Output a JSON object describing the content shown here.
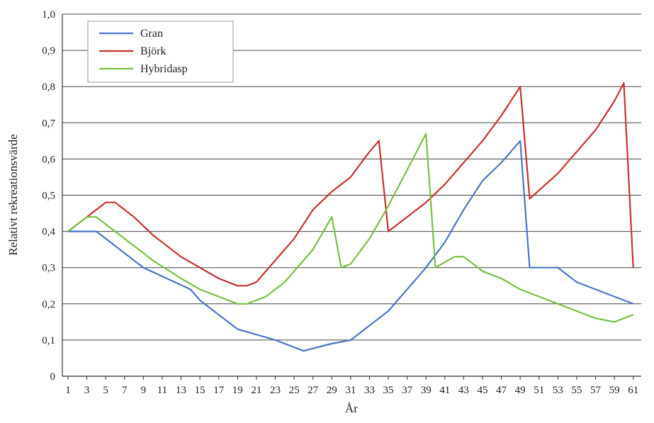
{
  "chart_data": {
    "type": "line",
    "title": "",
    "xlabel": "År",
    "ylabel": "Relativt rekreationsvärde",
    "xlim": [
      1,
      62
    ],
    "ylim": [
      0,
      1.0
    ],
    "x_ticks": [
      "1",
      "3",
      "5",
      "7",
      "9",
      "11",
      "13",
      "15",
      "17",
      "19",
      "21",
      "23",
      "25",
      "27",
      "29",
      "31",
      "33",
      "35",
      "37",
      "39",
      "41",
      "43",
      "45",
      "47",
      "49",
      "51",
      "53",
      "55",
      "57",
      "59",
      "61"
    ],
    "y_ticks": [
      "0",
      "0,1",
      "0,2",
      "0,3",
      "0,4",
      "0,5",
      "0,6",
      "0,7",
      "0,8",
      "0,9",
      "1,0"
    ],
    "grid": "horizontal",
    "legend_position": "top-left",
    "series": [
      {
        "name": "Gran",
        "color": "#4a76c8",
        "x": [
          1,
          4,
          5,
          9,
          14,
          15,
          19,
          23,
          26,
          29,
          31,
          33,
          35,
          37,
          39,
          41,
          43,
          45,
          47,
          49,
          50,
          53,
          55,
          57,
          59,
          61
        ],
        "y": [
          0.4,
          0.4,
          0.38,
          0.3,
          0.24,
          0.21,
          0.13,
          0.1,
          0.07,
          0.09,
          0.1,
          0.14,
          0.18,
          0.24,
          0.3,
          0.37,
          0.46,
          0.54,
          0.59,
          0.65,
          0.3,
          0.3,
          0.26,
          0.24,
          0.22,
          0.2
        ]
      },
      {
        "name": "Björk",
        "color": "#c8332f",
        "x": [
          1,
          3,
          5,
          6,
          8,
          10,
          13,
          15,
          17,
          19,
          20,
          21,
          23,
          25,
          27,
          29,
          31,
          33,
          34,
          35,
          37,
          39,
          41,
          43,
          45,
          47,
          49,
          50,
          53,
          55,
          57,
          59,
          60,
          61
        ],
        "y": [
          0.4,
          0.44,
          0.48,
          0.48,
          0.44,
          0.39,
          0.33,
          0.3,
          0.27,
          0.25,
          0.25,
          0.26,
          0.32,
          0.38,
          0.46,
          0.51,
          0.55,
          0.62,
          0.65,
          0.4,
          0.44,
          0.48,
          0.53,
          0.59,
          0.65,
          0.72,
          0.8,
          0.49,
          0.56,
          0.62,
          0.68,
          0.76,
          0.81,
          0.3
        ]
      },
      {
        "name": "Hybridasp",
        "color": "#78c043",
        "x": [
          1,
          3,
          4,
          6,
          8,
          10,
          13,
          15,
          17,
          19,
          20,
          22,
          24,
          26,
          27,
          29,
          30,
          31,
          33,
          35,
          37,
          39,
          40,
          42,
          43,
          45,
          47,
          49,
          51,
          53,
          55,
          57,
          59,
          61
        ],
        "y": [
          0.4,
          0.44,
          0.44,
          0.4,
          0.36,
          0.32,
          0.27,
          0.24,
          0.22,
          0.2,
          0.2,
          0.22,
          0.26,
          0.32,
          0.35,
          0.44,
          0.3,
          0.31,
          0.38,
          0.47,
          0.57,
          0.67,
          0.3,
          0.33,
          0.33,
          0.29,
          0.27,
          0.24,
          0.22,
          0.2,
          0.18,
          0.16,
          0.15,
          0.17
        ]
      }
    ]
  }
}
